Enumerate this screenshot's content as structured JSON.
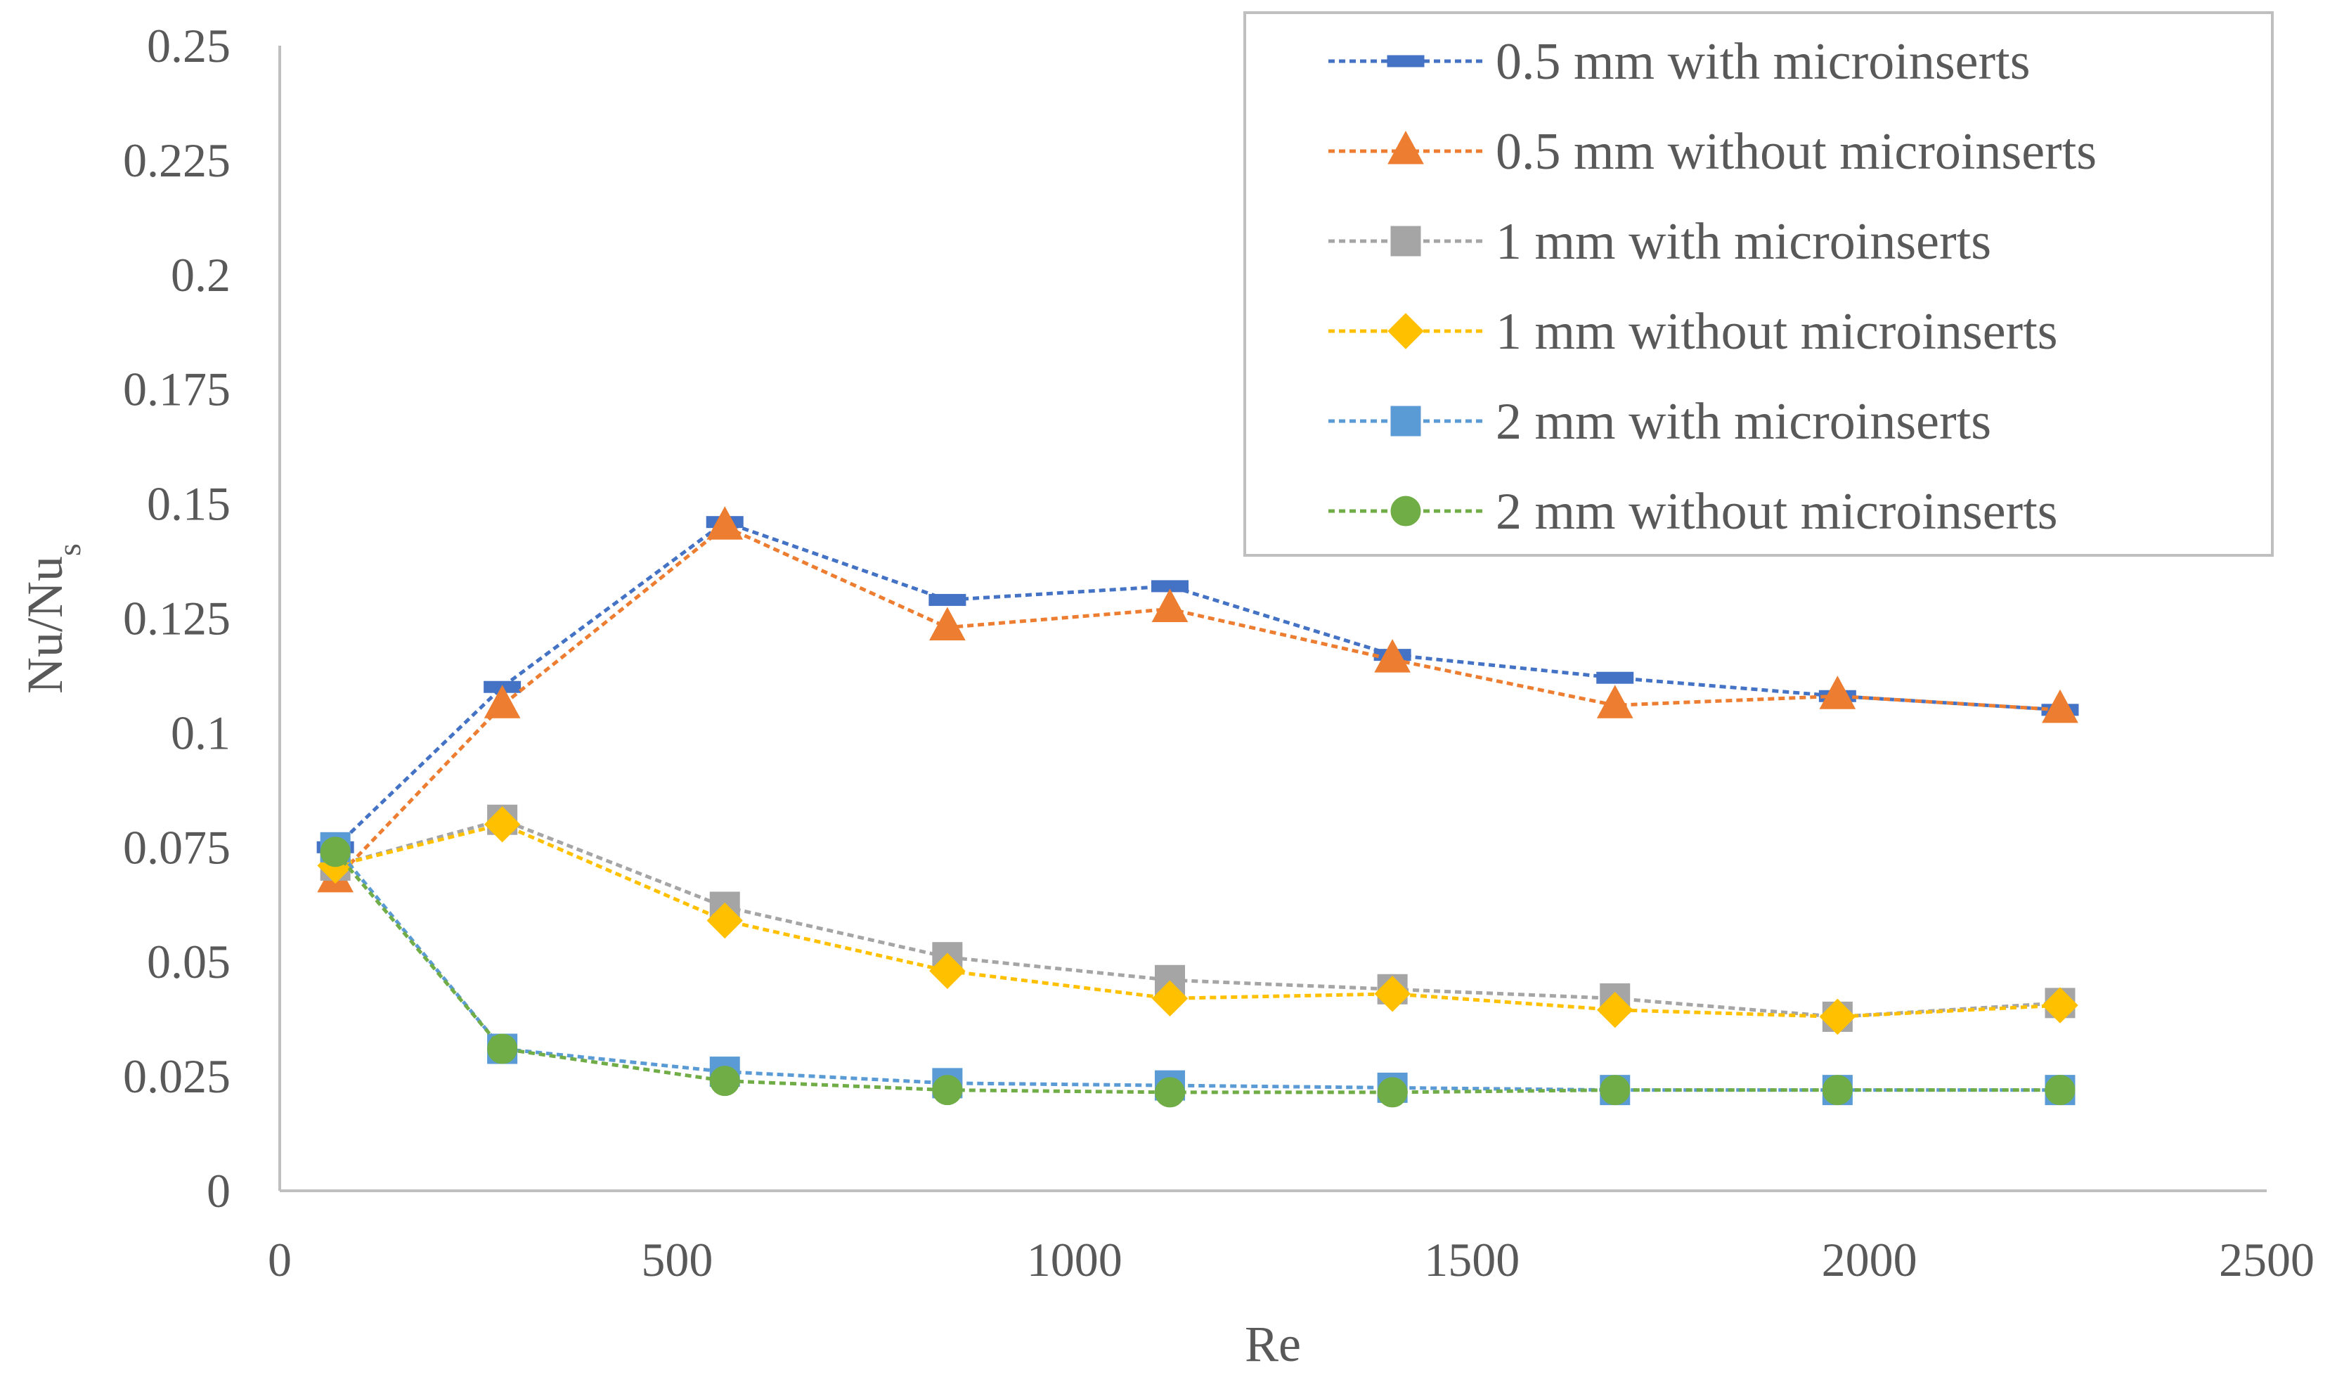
{
  "chart_data": {
    "type": "line",
    "title": "",
    "xlabel": "Re",
    "ylabel": {
      "main": "Nu/Nu",
      "subscript": "s"
    },
    "xlim": [
      0,
      2500
    ],
    "ylim": [
      0,
      0.25
    ],
    "xticks": [
      0,
      500,
      1000,
      1500,
      2000,
      2500
    ],
    "xtick_labels": [
      "0",
      "500",
      "1000",
      "1500",
      "2000",
      "2500"
    ],
    "yticks": [
      0,
      0.025,
      0.05,
      0.075,
      0.1,
      0.125,
      0.15,
      0.175,
      0.2,
      0.225,
      0.25
    ],
    "ytick_labels": [
      "0",
      "0.025",
      "0.05",
      "0.075",
      "0.1",
      "0.125",
      "0.15",
      "0.175",
      "0.2",
      "0.225",
      "0.25"
    ],
    "grid": false,
    "legend_position": "top-right",
    "x": [
      70,
      280,
      560,
      840,
      1120,
      1400,
      1680,
      1960,
      2240
    ],
    "series": [
      {
        "name": "0.5 mm with microinserts",
        "color": "#4472C4",
        "marker": "dash",
        "values": [
          0.075,
          0.11,
          0.146,
          0.129,
          0.132,
          0.117,
          0.112,
          0.108,
          0.105
        ]
      },
      {
        "name": "0.5 mm without microinserts",
        "color": "#ED7D31",
        "marker": "triangle",
        "values": [
          0.068,
          0.106,
          0.145,
          0.123,
          0.127,
          0.116,
          0.106,
          0.108,
          0.105
        ]
      },
      {
        "name": "1 mm with microinserts",
        "color": "#A5A5A5",
        "marker": "square",
        "values": [
          0.071,
          0.081,
          0.062,
          0.051,
          0.046,
          0.044,
          0.042,
          0.038,
          0.041
        ]
      },
      {
        "name": "1 mm without microinserts",
        "color": "#FFC000",
        "marker": "diamond",
        "values": [
          0.071,
          0.08,
          0.059,
          0.048,
          0.042,
          0.043,
          0.0395,
          0.038,
          0.0405
        ]
      },
      {
        "name": "2 mm with microinserts",
        "color": "#5B9BD5",
        "marker": "square",
        "values": [
          0.075,
          0.031,
          0.026,
          0.0235,
          0.023,
          0.0225,
          0.022,
          0.022,
          0.022
        ]
      },
      {
        "name": "2 mm without microinserts",
        "color": "#70AD47",
        "marker": "circle",
        "values": [
          0.074,
          0.031,
          0.024,
          0.022,
          0.0215,
          0.0215,
          0.022,
          0.022,
          0.022
        ]
      }
    ]
  }
}
